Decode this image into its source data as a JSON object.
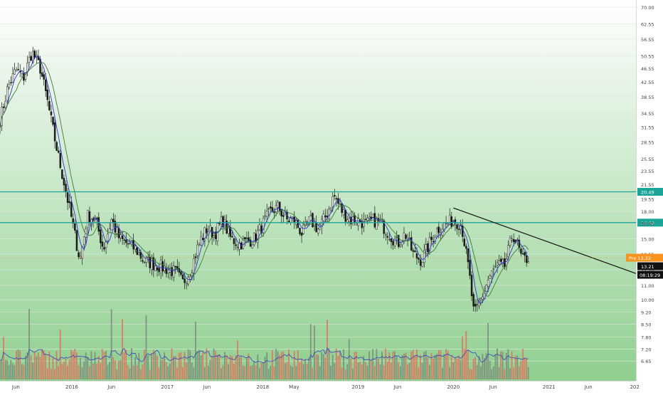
{
  "chart_data": {
    "type": "candlestick",
    "title": "",
    "xlabel": "",
    "ylabel": "",
    "y_scale": "log",
    "ylim": [
      6.2,
      72
    ],
    "xlim": [
      "2015-04-01",
      "2021-11-30"
    ],
    "grid": "horizontal",
    "background": {
      "top": "#ffffff",
      "bottom": "#8fcf8f"
    },
    "colors": {
      "candle": "#1a1a1a",
      "ma_fast": "#2e35d6",
      "ma_slow": "#3f7a3f",
      "volume_up": "#7a8a7a",
      "volume_down": "#e0705a",
      "volume_ma": "#3a3fc0",
      "hline": "#1aa596",
      "trendline": "#111111",
      "last_price": "#111111",
      "pre_market": "#f7931e"
    },
    "y_ticks": [
      "70.00",
      "62.55",
      "56.55",
      "50.55",
      "46.55",
      "42.55",
      "38.55",
      "34.55",
      "31.55",
      "28.55",
      "25.55",
      "23.55",
      "21.55",
      "19.55",
      "18.00",
      "16.65",
      "15.00",
      "13.55",
      "12.20",
      "11.00",
      "10.00",
      "9.20",
      "8.50",
      "7.80",
      "7.20",
      "6.65"
    ],
    "x_ticks": [
      {
        "label": "Jun",
        "date": "2015-06-01"
      },
      {
        "label": "2016",
        "date": "2016-01-01"
      },
      {
        "label": "Jun",
        "date": "2016-06-01"
      },
      {
        "label": "2017",
        "date": "2017-01-01"
      },
      {
        "label": "Jun",
        "date": "2017-06-01"
      },
      {
        "label": "2018",
        "date": "2018-01-01"
      },
      {
        "label": "May",
        "date": "2018-05-01"
      },
      {
        "label": "2019",
        "date": "2019-01-01"
      },
      {
        "label": "Jun",
        "date": "2019-06-01"
      },
      {
        "label": "2020",
        "date": "2020-01-01"
      },
      {
        "label": "Jun",
        "date": "2020-06-01"
      },
      {
        "label": "2021",
        "date": "2021-01-01"
      },
      {
        "label": "Jun",
        "date": "2021-06-01"
      },
      {
        "label": "202",
        "date": "2021-11-25"
      }
    ],
    "horizontal_lines": [
      {
        "value": 20.49,
        "label": "20.49"
      },
      {
        "value": 16.69,
        "label": "16.69"
      }
    ],
    "trendline": {
      "start": {
        "date": "2020-01-01",
        "price": 18.4
      },
      "end": {
        "date": "2021-11-30",
        "price": 11.9
      }
    },
    "price_path": [
      [
        "2015-04-01",
        33
      ],
      [
        "2015-05-01",
        41
      ],
      [
        "2015-06-01",
        46
      ],
      [
        "2015-07-01",
        44
      ],
      [
        "2015-08-01",
        52
      ],
      [
        "2015-09-01",
        47
      ],
      [
        "2015-10-01",
        37
      ],
      [
        "2015-11-01",
        28
      ],
      [
        "2015-12-01",
        22
      ],
      [
        "2016-01-01",
        17
      ],
      [
        "2016-02-01",
        13
      ],
      [
        "2016-03-01",
        17.5
      ],
      [
        "2016-04-01",
        17
      ],
      [
        "2016-05-01",
        14
      ],
      [
        "2016-06-01",
        17
      ],
      [
        "2016-07-01",
        15
      ],
      [
        "2016-09-01",
        14
      ],
      [
        "2016-10-01",
        13
      ],
      [
        "2016-12-01",
        12.5
      ],
      [
        "2017-02-01",
        12
      ],
      [
        "2017-03-01",
        11.2
      ],
      [
        "2017-04-01",
        12.2
      ],
      [
        "2017-05-01",
        14.5
      ],
      [
        "2017-06-01",
        16
      ],
      [
        "2017-07-01",
        15.5
      ],
      [
        "2017-08-01",
        17
      ],
      [
        "2017-09-01",
        15
      ],
      [
        "2017-10-01",
        14.5
      ],
      [
        "2017-12-01",
        15
      ],
      [
        "2018-01-01",
        16.5
      ],
      [
        "2018-02-01",
        18
      ],
      [
        "2018-03-01",
        18.5
      ],
      [
        "2018-04-01",
        17
      ],
      [
        "2018-05-01",
        17
      ],
      [
        "2018-06-01",
        15.5
      ],
      [
        "2018-07-01",
        17
      ],
      [
        "2018-08-01",
        16
      ],
      [
        "2018-09-01",
        17.5
      ],
      [
        "2018-10-01",
        20
      ],
      [
        "2018-11-01",
        18
      ],
      [
        "2018-12-01",
        17
      ],
      [
        "2019-01-01",
        17
      ],
      [
        "2019-02-01",
        16.5
      ],
      [
        "2019-03-01",
        17
      ],
      [
        "2019-04-01",
        16.5
      ],
      [
        "2019-05-01",
        15.5
      ],
      [
        "2019-06-01",
        14.5
      ],
      [
        "2019-07-01",
        15.5
      ],
      [
        "2019-08-01",
        13.5
      ],
      [
        "2019-09-01",
        13
      ],
      [
        "2019-10-01",
        14.5
      ],
      [
        "2019-11-01",
        16
      ],
      [
        "2019-12-01",
        16.5
      ],
      [
        "2020-01-01",
        17
      ],
      [
        "2020-02-01",
        16.5
      ],
      [
        "2020-03-01",
        12
      ],
      [
        "2020-03-20",
        9
      ],
      [
        "2020-04-15",
        10
      ],
      [
        "2020-05-15",
        11.5
      ],
      [
        "2020-06-15",
        12.5
      ],
      [
        "2020-07-15",
        12.5
      ],
      [
        "2020-08-15",
        15.5
      ],
      [
        "2020-09-01",
        14.5
      ],
      [
        "2020-09-20",
        13
      ],
      [
        "2020-10-15",
        13.2
      ]
    ],
    "price_labels": {
      "pre": "Pre",
      "pre_value": "13.22",
      "last": "13.21",
      "countdown": "08:19:29"
    },
    "indicator_names": [
      "moving average (fast)",
      "moving average (slow)",
      "volume",
      "volume moving average"
    ]
  }
}
